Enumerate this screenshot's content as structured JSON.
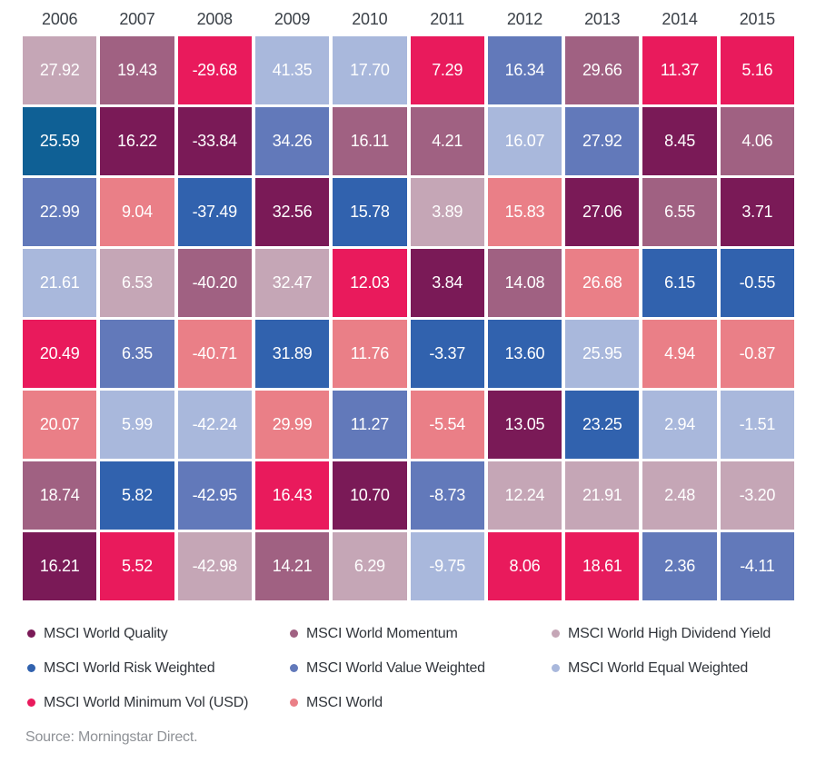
{
  "palette": {
    "quality": "#7a1a57",
    "momentum": "#a06182",
    "hdy": "#c5a6b6",
    "rw": "#3162ae",
    "vw": "#6279ba",
    "ew": "#a9b8dc",
    "minvol": "#e91a5c",
    "world": "#ea7f87"
  },
  "chart_data": {
    "type": "heatmap",
    "title": "",
    "years": [
      "2006",
      "2007",
      "2008",
      "2009",
      "2010",
      "2011",
      "2012",
      "2013",
      "2014",
      "2015"
    ],
    "columns": [
      {
        "year": "2006",
        "cells": [
          {
            "value": "27.92",
            "index": "hdy"
          },
          {
            "value": "25.59",
            "index": "rw",
            "color": "#0f6095"
          },
          {
            "value": "22.99",
            "index": "vw"
          },
          {
            "value": "21.61",
            "index": "ew"
          },
          {
            "value": "20.49",
            "index": "minvol"
          },
          {
            "value": "20.07",
            "index": "world"
          },
          {
            "value": "18.74",
            "index": "momentum"
          },
          {
            "value": "16.21",
            "index": "quality"
          }
        ]
      },
      {
        "year": "2007",
        "cells": [
          {
            "value": "19.43",
            "index": "momentum"
          },
          {
            "value": "16.22",
            "index": "quality"
          },
          {
            "value": "9.04",
            "index": "world"
          },
          {
            "value": "6.53",
            "index": "hdy"
          },
          {
            "value": "6.35",
            "index": "vw"
          },
          {
            "value": "5.99",
            "index": "ew"
          },
          {
            "value": "5.82",
            "index": "rw"
          },
          {
            "value": "5.52",
            "index": "minvol"
          }
        ]
      },
      {
        "year": "2008",
        "cells": [
          {
            "value": "-29.68",
            "index": "minvol"
          },
          {
            "value": "-33.84",
            "index": "quality"
          },
          {
            "value": "-37.49",
            "index": "rw"
          },
          {
            "value": "-40.20",
            "index": "momentum"
          },
          {
            "value": "-40.71",
            "index": "world"
          },
          {
            "value": "-42.24",
            "index": "ew"
          },
          {
            "value": "-42.95",
            "index": "vw"
          },
          {
            "value": "-42.98",
            "index": "hdy"
          }
        ]
      },
      {
        "year": "2009",
        "cells": [
          {
            "value": "41.35",
            "index": "ew"
          },
          {
            "value": "34.26",
            "index": "vw"
          },
          {
            "value": "32.56",
            "index": "quality"
          },
          {
            "value": "32.47",
            "index": "hdy"
          },
          {
            "value": "31.89",
            "index": "rw"
          },
          {
            "value": "29.99",
            "index": "world"
          },
          {
            "value": "16.43",
            "index": "minvol"
          },
          {
            "value": "14.21",
            "index": "momentum"
          }
        ]
      },
      {
        "year": "2010",
        "cells": [
          {
            "value": "17.70",
            "index": "ew"
          },
          {
            "value": "16.11",
            "index": "momentum"
          },
          {
            "value": "15.78",
            "index": "rw"
          },
          {
            "value": "12.03",
            "index": "minvol"
          },
          {
            "value": "11.76",
            "index": "world"
          },
          {
            "value": "11.27",
            "index": "vw"
          },
          {
            "value": "10.70",
            "index": "quality"
          },
          {
            "value": "6.29",
            "index": "hdy"
          }
        ]
      },
      {
        "year": "2011",
        "cells": [
          {
            "value": "7.29",
            "index": "minvol"
          },
          {
            "value": "4.21",
            "index": "momentum"
          },
          {
            "value": "3.89",
            "index": "hdy"
          },
          {
            "value": "3.84",
            "index": "quality"
          },
          {
            "value": "-3.37",
            "index": "rw"
          },
          {
            "value": "-5.54",
            "index": "world"
          },
          {
            "value": "-8.73",
            "index": "vw"
          },
          {
            "value": "-9.75",
            "index": "ew"
          }
        ]
      },
      {
        "year": "2012",
        "cells": [
          {
            "value": "16.34",
            "index": "vw"
          },
          {
            "value": "16.07",
            "index": "ew"
          },
          {
            "value": "15.83",
            "index": "world"
          },
          {
            "value": "14.08",
            "index": "momentum"
          },
          {
            "value": "13.60",
            "index": "rw"
          },
          {
            "value": "13.05",
            "index": "quality"
          },
          {
            "value": "12.24",
            "index": "hdy"
          },
          {
            "value": "8.06",
            "index": "minvol"
          }
        ]
      },
      {
        "year": "2013",
        "cells": [
          {
            "value": "29.66",
            "index": "momentum"
          },
          {
            "value": "27.92",
            "index": "vw"
          },
          {
            "value": "27.06",
            "index": "quality"
          },
          {
            "value": "26.68",
            "index": "world"
          },
          {
            "value": "25.95",
            "index": "ew"
          },
          {
            "value": "23.25",
            "index": "rw"
          },
          {
            "value": "21.91",
            "index": "hdy"
          },
          {
            "value": "18.61",
            "index": "minvol"
          }
        ]
      },
      {
        "year": "2014",
        "cells": [
          {
            "value": "11.37",
            "index": "minvol"
          },
          {
            "value": "8.45",
            "index": "quality"
          },
          {
            "value": "6.55",
            "index": "momentum"
          },
          {
            "value": "6.15",
            "index": "rw"
          },
          {
            "value": "4.94",
            "index": "world"
          },
          {
            "value": "2.94",
            "index": "ew"
          },
          {
            "value": "2.48",
            "index": "hdy"
          },
          {
            "value": "2.36",
            "index": "vw"
          }
        ]
      },
      {
        "year": "2015",
        "cells": [
          {
            "value": "5.16",
            "index": "minvol"
          },
          {
            "value": "4.06",
            "index": "momentum"
          },
          {
            "value": "3.71",
            "index": "quality"
          },
          {
            "value": "-0.55",
            "index": "rw"
          },
          {
            "value": "-0.87",
            "index": "world"
          },
          {
            "value": "-1.51",
            "index": "ew"
          },
          {
            "value": "-3.20",
            "index": "hdy"
          },
          {
            "value": "-4.11",
            "index": "vw"
          }
        ]
      }
    ],
    "legend_rows": [
      [
        {
          "id": "quality",
          "label": "MSCI World Quality"
        },
        {
          "id": "momentum",
          "label": "MSCI World Momentum"
        },
        {
          "id": "hdy",
          "label": "MSCI World High Dividend Yield"
        }
      ],
      [
        {
          "id": "rw",
          "label": "MSCI World Risk Weighted"
        },
        {
          "id": "vw",
          "label": "MSCI World Value Weighted"
        },
        {
          "id": "ew",
          "label": "MSCI World Equal Weighted"
        }
      ],
      [
        {
          "id": "minvol",
          "label": "MSCI World Minimum Vol (USD)"
        },
        {
          "id": "world",
          "label": "MSCI World"
        }
      ]
    ]
  },
  "footer": {
    "source": "Source: Morningstar Direct."
  }
}
